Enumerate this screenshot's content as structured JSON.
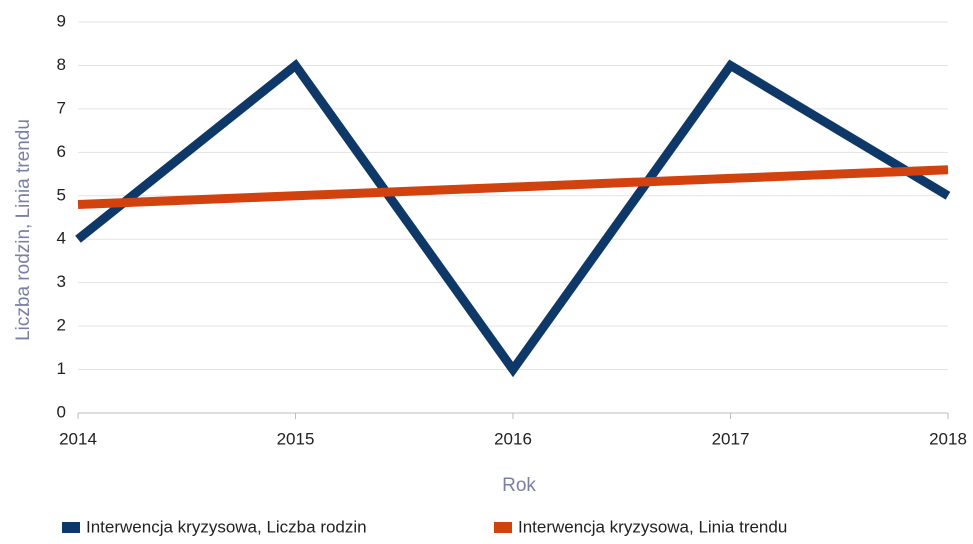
{
  "chart_data": {
    "type": "line",
    "x": [
      2014,
      2015,
      2016,
      2017,
      2018
    ],
    "xlabel": "Rok",
    "ylabel": "Liczba rodzin, Linia trendu",
    "xlim": [
      2014,
      2018
    ],
    "xticks": [
      2014,
      2015,
      2016,
      2017,
      2018
    ],
    "ylim": [
      0,
      9
    ],
    "yticks": [
      0,
      1,
      2,
      3,
      4,
      5,
      6,
      7,
      8,
      9
    ],
    "grid": true,
    "legend": "bottom",
    "series": [
      {
        "name": "Interwencja kryzysowa, Liczba rodzin",
        "color": "#0d3868",
        "values": [
          4,
          8,
          1,
          8,
          5
        ]
      },
      {
        "name": "Interwencja kryzysowa, Linia trendu",
        "color": "#d2420f",
        "values": [
          4.8,
          5.0,
          5.2,
          5.4,
          5.6
        ]
      }
    ]
  }
}
